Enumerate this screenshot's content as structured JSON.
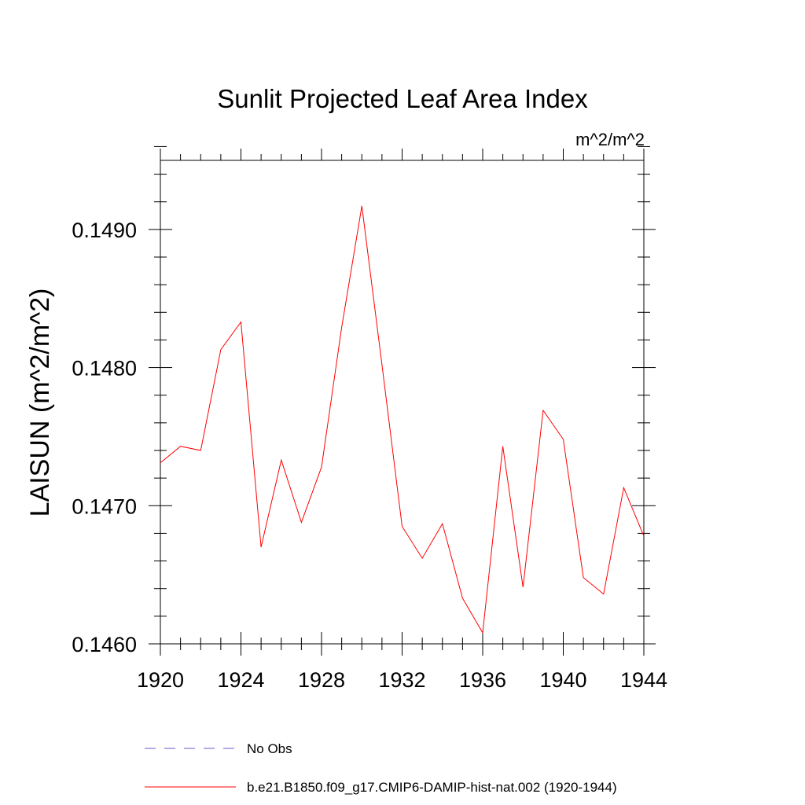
{
  "chart_data": {
    "type": "line",
    "title": "Sunlit Projected Leaf Area Index",
    "units_label": "m^2/m^2",
    "ylabel": "LAISUN  (m^2/m^2)",
    "xlabel": "",
    "xlim": [
      1920,
      1944
    ],
    "ylim": [
      0.146,
      0.1495
    ],
    "x_ticks": [
      1920,
      1924,
      1928,
      1932,
      1936,
      1940,
      1944
    ],
    "x_tick_labels": [
      "1920",
      "1924",
      "1928",
      "1932",
      "1936",
      "1940",
      "1944"
    ],
    "y_ticks": [
      0.146,
      0.147,
      0.148,
      0.149
    ],
    "y_tick_labels": [
      "0.1460",
      "0.1470",
      "0.1480",
      "0.1490"
    ],
    "grid": false,
    "legend_position": "bottom",
    "legend": [
      {
        "label": "No Obs",
        "color": "#6a5acd",
        "style": "dashed"
      },
      {
        "label": "b.e21.B1850.f09_g17.CMIP6-DAMIP-hist-nat.002 (1920-1944)",
        "color": "#ff0000",
        "style": "solid"
      }
    ],
    "series": [
      {
        "name": "b.e21.B1850.f09_g17.CMIP6-DAMIP-hist-nat.002 (1920-1944)",
        "color": "#ff0000",
        "x": [
          1920,
          1921,
          1922,
          1923,
          1924,
          1925,
          1926,
          1927,
          1928,
          1929,
          1930,
          1931,
          1932,
          1933,
          1934,
          1935,
          1936,
          1937,
          1938,
          1939,
          1940,
          1941,
          1942,
          1943,
          1944
        ],
        "y": [
          0.14731,
          0.14743,
          0.1474,
          0.14813,
          0.14833,
          0.1467,
          0.14733,
          0.14688,
          0.14728,
          0.14829,
          0.14917,
          0.14802,
          0.14685,
          0.14662,
          0.14687,
          0.14633,
          0.14608,
          0.14743,
          0.14641,
          0.14769,
          0.14748,
          0.14648,
          0.14636,
          0.14713,
          0.14678
        ]
      }
    ]
  }
}
